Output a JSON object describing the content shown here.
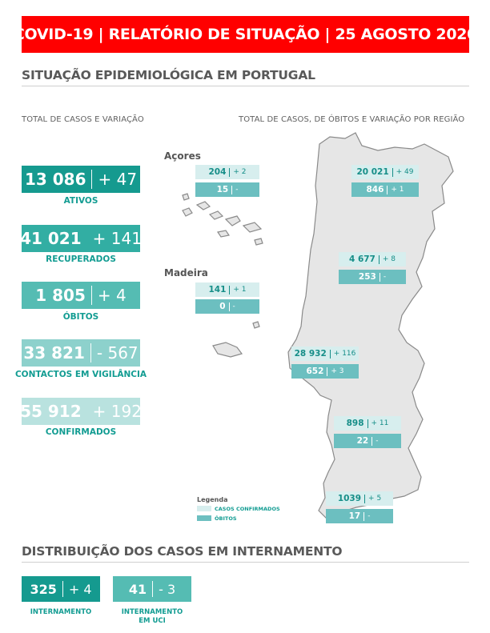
{
  "banner": {
    "title": "COVID-19 | RELATÓRIO DE SITUAÇÃO | 25 AGOSTO 2020"
  },
  "colors": {
    "banner": "#ff0000",
    "ativos": "#159a8f",
    "recuperados": "#32aea3",
    "obitos": "#55bcb3",
    "contactos": "#8dd1cc",
    "confirmados": "#b9e2df",
    "regiao_confirmados": "#d7eeee",
    "regiao_obitos": "#6cbfc0",
    "label": "#129c92"
  },
  "section1": {
    "title": "SITUAÇÃO EPIDEMIOLÓGICA EM PORTUGAL",
    "left_subtitle": "TOTAL DE CASOS E VARIAÇÃO",
    "right_subtitle": "TOTAL DE CASOS, DE ÓBITOS  E VARIAÇÃO POR REGIÃO"
  },
  "kpis": [
    {
      "value": "13 086",
      "delta": "+ 47",
      "label": "ATIVOS"
    },
    {
      "value": "41 021",
      "delta": "+ 141",
      "label": "RECUPERADOS"
    },
    {
      "value": "1 805",
      "delta": "+ 4",
      "label": "ÓBITOS"
    },
    {
      "value": "33 821",
      "delta": "- 567",
      "label": "CONTACTOS EM VIGILÂNCIA"
    },
    {
      "value": "55 912",
      "delta": "+ 192",
      "label": "CONFIRMADOS"
    }
  ],
  "regions": {
    "acores": {
      "name": "Açores",
      "cases": "204",
      "cases_delta": "+ 2",
      "deaths": "15",
      "deaths_delta": "-"
    },
    "madeira": {
      "name": "Madeira",
      "cases": "141",
      "cases_delta": "+ 1",
      "deaths": "0",
      "deaths_delta": "-"
    },
    "norte": {
      "cases": "20 021",
      "cases_delta": "+ 49",
      "deaths": "846",
      "deaths_delta": "+ 1"
    },
    "centro": {
      "cases": "4 677",
      "cases_delta": "+ 8",
      "deaths": "253",
      "deaths_delta": "-"
    },
    "lvt": {
      "cases": "28 932",
      "cases_delta": "+ 116",
      "deaths": "652",
      "deaths_delta": "+ 3"
    },
    "alentejo": {
      "cases": "898",
      "cases_delta": "+ 11",
      "deaths": "22",
      "deaths_delta": "-"
    },
    "algarve": {
      "cases": "1039",
      "cases_delta": "+ 5",
      "deaths": "17",
      "deaths_delta": "-"
    }
  },
  "legend": {
    "title": "Legenda",
    "confirmed": "CASOS CONFIRMADOS",
    "deaths": "ÓBITOS"
  },
  "section2": {
    "title": "DISTRIBUIÇÃO DOS CASOS EM INTERNAMENTO",
    "internamento": {
      "value": "325",
      "delta": "+ 4",
      "label": "INTERNAMENTO"
    },
    "uci": {
      "value": "41",
      "delta": "- 3",
      "label_line1": "INTERNAMENTO",
      "label_line2": "EM UCI"
    }
  }
}
